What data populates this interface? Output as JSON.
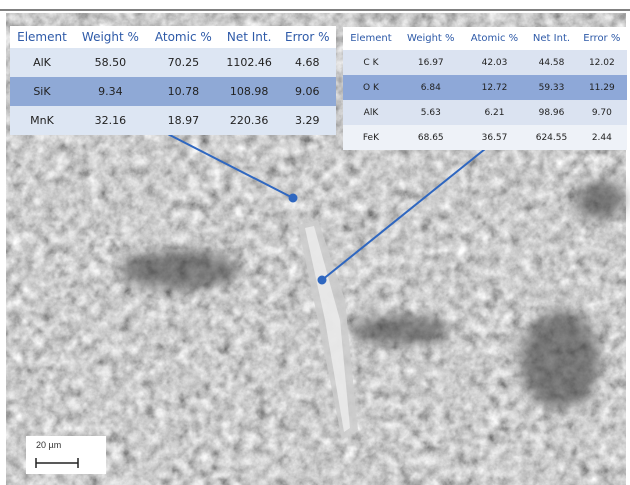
{
  "tables": [
    {
      "header": [
        "Element",
        "Weight %",
        "Atomic %",
        "Net Int.",
        "Error %"
      ],
      "rows": [
        [
          "AlK",
          "58.50",
          "70.25",
          "1102.46",
          "4.68"
        ],
        [
          "SiK",
          "9.34",
          "10.78",
          "108.98",
          "9.06"
        ],
        [
          "MnK",
          "32.16",
          "18.97",
          "220.36",
          "3.29"
        ]
      ]
    },
    {
      "header": [
        "Element",
        "Weight %",
        "Atomic %",
        "Net Int.",
        "Error %"
      ],
      "rows": [
        [
          "C K",
          "16.97",
          "42.03",
          "44.58",
          "12.02"
        ],
        [
          "O K",
          "6.84",
          "12.72",
          "59.33",
          "11.29"
        ],
        [
          "AlK",
          "5.63",
          "6.21",
          "98.96",
          "9.70"
        ],
        [
          "FeK",
          "68.65",
          "36.57",
          "624.55",
          "2.44"
        ]
      ]
    }
  ],
  "scale_bar": "20 µm"
}
